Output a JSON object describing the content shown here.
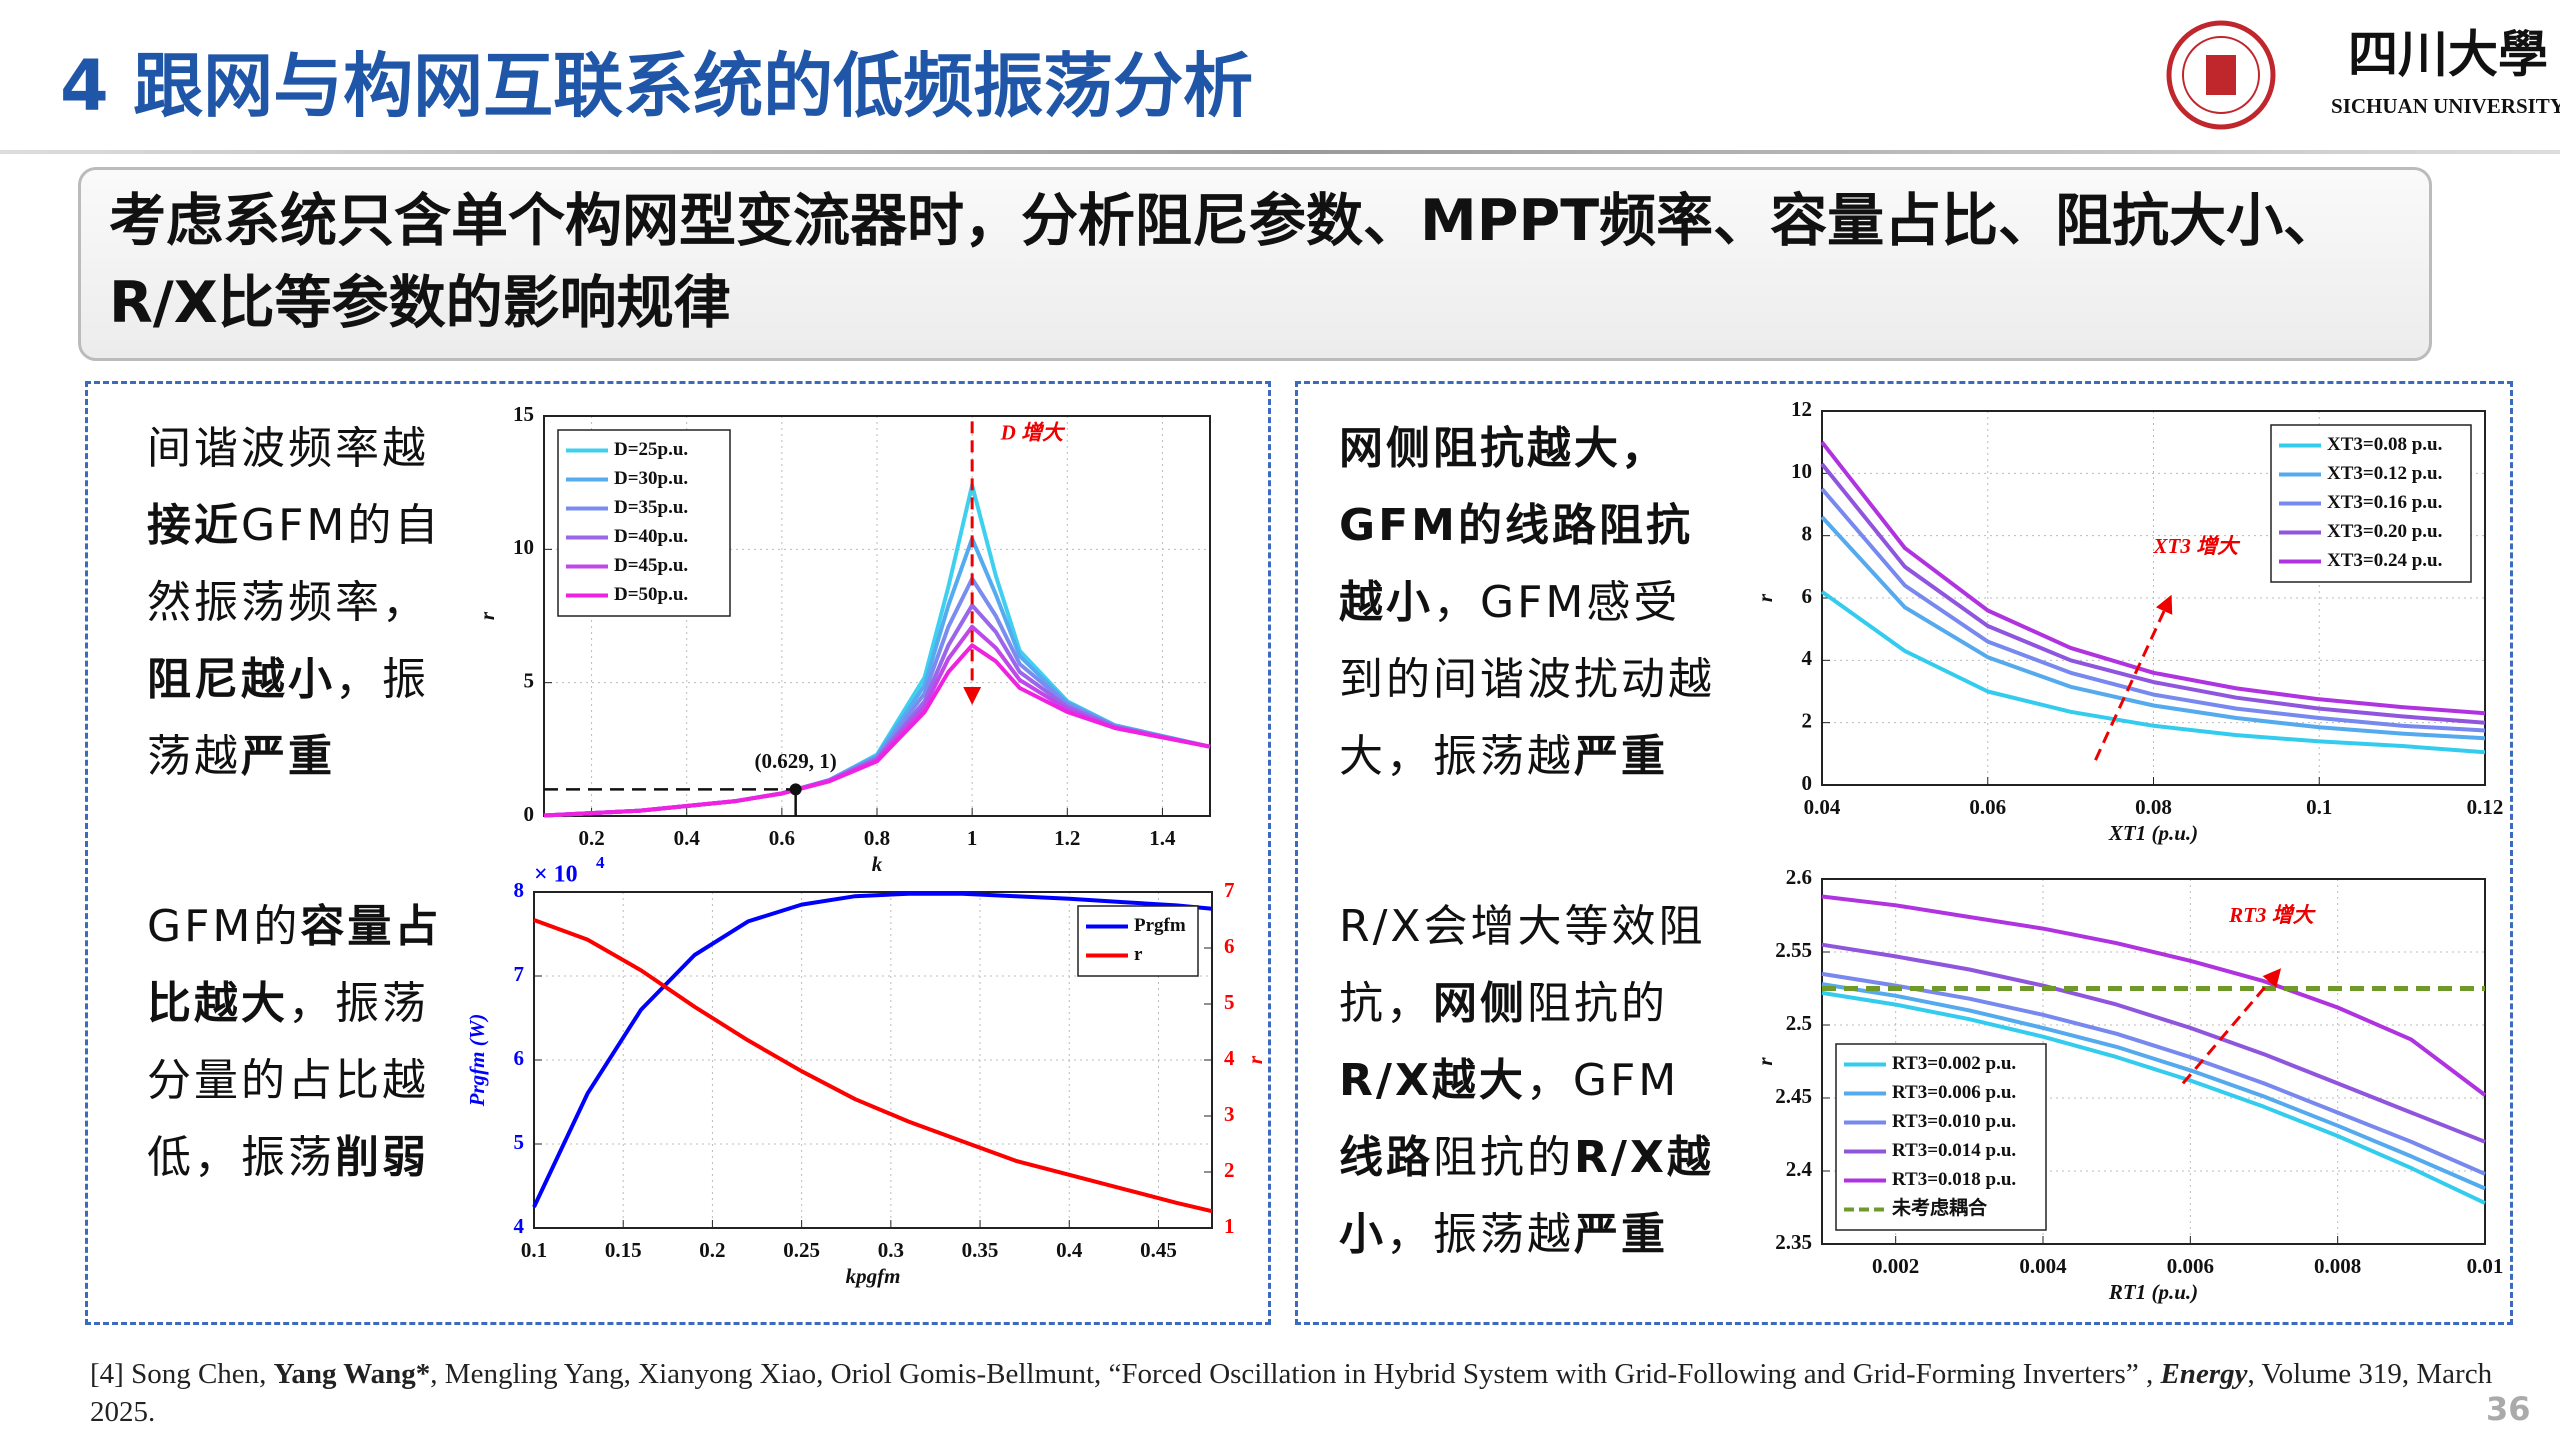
{
  "header": {
    "title": "4 跟网与构网互联系统的低频振荡分析",
    "logo_cn": "四川大學",
    "logo_en": "SICHUAN UNIVERSITY"
  },
  "banner": "考虑系统只含单个构网型变流器时，分析阻尼参数、MPPT频率、容量占比、阻抗大小、R/X比等参数的影响规律",
  "left_text": [
    {
      "lines": [
        [
          {
            "text": "间谐波频率越",
            "bold": false
          }
        ],
        [
          {
            "text": "接近",
            "bold": true
          },
          {
            "text": "GFM的自",
            "bold": false
          }
        ],
        [
          {
            "text": "然振荡频率，",
            "bold": false
          }
        ],
        [
          {
            "text": "阻尼越小",
            "bold": true
          },
          {
            "text": "，振",
            "bold": false
          }
        ],
        [
          {
            "text": "荡越",
            "bold": false
          },
          {
            "text": "严重",
            "bold": true
          }
        ]
      ]
    },
    {
      "lines": [
        [
          {
            "text": "GFM的",
            "bold": false
          },
          {
            "text": "容量占",
            "bold": true
          }
        ],
        [
          {
            "text": "比越大",
            "bold": true
          },
          {
            "text": "，振荡",
            "bold": false
          }
        ],
        [
          {
            "text": "分量的占比越",
            "bold": false
          }
        ],
        [
          {
            "text": "低，振荡",
            "bold": false
          },
          {
            "text": "削弱",
            "bold": true
          }
        ]
      ]
    }
  ],
  "right_text": [
    {
      "lines": [
        [
          {
            "text": "网侧阻抗越大，",
            "bold": true
          }
        ],
        [
          {
            "text": "GFM的线路阻抗",
            "bold": true
          }
        ],
        [
          {
            "text": "越小",
            "bold": true
          },
          {
            "text": "，GFM感受",
            "bold": false
          }
        ],
        [
          {
            "text": "到的间谐波扰动越",
            "bold": false
          }
        ],
        [
          {
            "text": "大，振荡越",
            "bold": false
          },
          {
            "text": "严重",
            "bold": true
          }
        ]
      ]
    },
    {
      "lines": [
        [
          {
            "text": "R/X会增大等效阻",
            "bold": false
          }
        ],
        [
          {
            "text": "抗，",
            "bold": false
          },
          {
            "text": "网侧",
            "bold": true
          },
          {
            "text": "阻抗的",
            "bold": false
          }
        ],
        [
          {
            "text": "R/X越大",
            "bold": true
          },
          {
            "text": "，GFM",
            "bold": false
          }
        ],
        [
          {
            "text": "线路",
            "bold": true
          },
          {
            "text": "阻抗的",
            "bold": false
          },
          {
            "text": "R/X越",
            "bold": true
          }
        ],
        [
          {
            "text": "小",
            "bold": true
          },
          {
            "text": "，振荡越",
            "bold": false
          },
          {
            "text": "严重",
            "bold": true
          }
        ]
      ]
    }
  ],
  "footnote": [
    {
      "text": "[4] Song Chen, ",
      "bold": false
    },
    {
      "text": "Yang Wang*",
      "bold": true
    },
    {
      "text": ", Mengling Yang, Xianyong Xiao, Oriol Gomis-Bellmunt, “Forced Oscillation in Hybrid System with Grid-Following and Grid-Forming Inverters” , ",
      "bold": false
    },
    {
      "text": "Energy",
      "bold": true,
      "italic": true
    },
    {
      "text": ", Volume 319, March 2025.",
      "bold": false
    }
  ],
  "page_number": "36",
  "chart_data": [
    {
      "type": "line",
      "xlabel": "k",
      "ylabel": "r",
      "xlim": [
        0.1,
        1.5
      ],
      "ylim": [
        0,
        15
      ],
      "xticks": [
        0.2,
        0.4,
        0.6,
        0.8,
        1,
        1.2,
        1.4
      ],
      "yticks": [
        0,
        5,
        10,
        15
      ],
      "grid": true,
      "legend": "upper left",
      "x": [
        0.1,
        0.3,
        0.5,
        0.6,
        0.7,
        0.8,
        0.9,
        0.95,
        1.0,
        1.05,
        1.1,
        1.2,
        1.3,
        1.5
      ],
      "series": [
        {
          "name": "D=25p.u.",
          "color": "#3fd0f0",
          "values": [
            0.02,
            0.2,
            0.55,
            0.85,
            1.35,
            2.3,
            5.2,
            8.6,
            12.4,
            9.0,
            6.2,
            4.3,
            3.4,
            2.6
          ]
        },
        {
          "name": "D=30p.u.",
          "color": "#55aaf0",
          "values": [
            0.02,
            0.2,
            0.55,
            0.85,
            1.35,
            2.25,
            4.9,
            7.9,
            10.4,
            8.3,
            6.0,
            4.25,
            3.4,
            2.6
          ]
        },
        {
          "name": "D=35p.u.",
          "color": "#7a8cf0",
          "values": [
            0.02,
            0.2,
            0.55,
            0.85,
            1.35,
            2.2,
            4.6,
            7.1,
            8.9,
            7.5,
            5.7,
            4.2,
            3.35,
            2.6
          ]
        },
        {
          "name": "D=40p.u.",
          "color": "#9a66ea",
          "values": [
            0.02,
            0.2,
            0.55,
            0.85,
            1.33,
            2.15,
            4.3,
            6.4,
            7.9,
            6.9,
            5.4,
            4.1,
            3.35,
            2.6
          ]
        },
        {
          "name": "D=45p.u.",
          "color": "#c048e8",
          "values": [
            0.02,
            0.2,
            0.55,
            0.85,
            1.32,
            2.1,
            4.1,
            5.9,
            7.1,
            6.3,
            5.1,
            4.0,
            3.3,
            2.6
          ]
        },
        {
          "name": "D=50p.u.",
          "color": "#ee22e0",
          "values": [
            0.02,
            0.2,
            0.55,
            0.84,
            1.3,
            2.05,
            3.9,
            5.4,
            6.4,
            5.8,
            4.8,
            3.9,
            3.3,
            2.6
          ]
        }
      ],
      "annotations": [
        "D 增大"
      ],
      "highlight": {
        "x": 0.629,
        "y": 1,
        "label": "(0.629, 1)"
      }
    },
    {
      "type": "line",
      "xlabel": "kpgfm",
      "ylabel": "Prgfm (W)",
      "y2label": "r",
      "ylabel_scale": "× 10",
      "ylabel_scale_exp": "4",
      "xlim": [
        0.1,
        0.48
      ],
      "ylim": [
        4,
        8
      ],
      "y2lim": [
        1,
        7
      ],
      "xticks": [
        0.1,
        0.15,
        0.2,
        0.25,
        0.3,
        0.35,
        0.4,
        0.45
      ],
      "yticks": [
        4,
        5,
        6,
        7,
        8
      ],
      "y2ticks": [
        1,
        2,
        3,
        4,
        5,
        6,
        7
      ],
      "grid": true,
      "legend": "upper right",
      "x": [
        0.1,
        0.13,
        0.16,
        0.19,
        0.22,
        0.25,
        0.28,
        0.31,
        0.34,
        0.37,
        0.4,
        0.43,
        0.46,
        0.48
      ],
      "series": [
        {
          "name": "Prgfm",
          "color": "#0000ff",
          "values": [
            4.25,
            5.6,
            6.6,
            7.25,
            7.65,
            7.85,
            7.95,
            7.98,
            7.98,
            7.95,
            7.92,
            7.88,
            7.84,
            7.8
          ]
        },
        {
          "name": "r",
          "color": "#ff0000",
          "axis": "y2",
          "values": [
            6.5,
            6.15,
            5.6,
            4.95,
            4.35,
            3.8,
            3.3,
            2.9,
            2.55,
            2.2,
            1.95,
            1.7,
            1.45,
            1.3
          ]
        }
      ]
    },
    {
      "type": "line",
      "xlabel": "XT1 (p.u.)",
      "ylabel": "r",
      "xlim": [
        0.04,
        0.12
      ],
      "ylim": [
        0,
        12
      ],
      "xticks": [
        0.04,
        0.06,
        0.08,
        0.1,
        0.12
      ],
      "yticks": [
        0,
        2,
        4,
        6,
        8,
        10,
        12
      ],
      "grid": true,
      "legend": "upper right",
      "x": [
        0.04,
        0.05,
        0.06,
        0.07,
        0.08,
        0.09,
        0.1,
        0.11,
        0.12
      ],
      "series": [
        {
          "name": "XT3=0.08 p.u.",
          "color": "#33ccee",
          "values": [
            6.2,
            4.3,
            3.0,
            2.35,
            1.9,
            1.6,
            1.4,
            1.25,
            1.05
          ]
        },
        {
          "name": "XT3=0.12 p.u.",
          "color": "#55aaee",
          "values": [
            8.6,
            5.7,
            4.1,
            3.15,
            2.55,
            2.15,
            1.85,
            1.65,
            1.5
          ]
        },
        {
          "name": "XT3=0.16 p.u.",
          "color": "#7788ee",
          "values": [
            9.5,
            6.4,
            4.6,
            3.6,
            2.9,
            2.45,
            2.15,
            1.9,
            1.75
          ]
        },
        {
          "name": "XT3=0.20 p.u.",
          "color": "#9055dd",
          "values": [
            10.3,
            7.0,
            5.1,
            4.0,
            3.3,
            2.8,
            2.45,
            2.2,
            2.0
          ]
        },
        {
          "name": "XT3=0.24 p.u.",
          "color": "#b033e0",
          "values": [
            11,
            7.6,
            5.6,
            4.4,
            3.6,
            3.1,
            2.75,
            2.5,
            2.3
          ]
        }
      ],
      "annotations": [
        "XT3 增大"
      ]
    },
    {
      "type": "line",
      "xlabel": "RT1 (p.u.)",
      "ylabel": "r",
      "xlim": [
        0.001,
        0.01
      ],
      "ylim": [
        2.35,
        2.6
      ],
      "xticks": [
        0.002,
        0.004,
        0.006,
        0.008,
        0.01
      ],
      "yticks": [
        2.35,
        2.4,
        2.45,
        2.5,
        2.55,
        2.6
      ],
      "grid": true,
      "legend": "lower left",
      "x": [
        0.001,
        0.002,
        0.003,
        0.004,
        0.005,
        0.006,
        0.007,
        0.008,
        0.009,
        0.01
      ],
      "series": [
        {
          "name": "RT3=0.002 p.u.",
          "color": "#33ccee",
          "values": [
            2.522,
            2.514,
            2.504,
            2.492,
            2.478,
            2.462,
            2.444,
            2.424,
            2.402,
            2.378
          ]
        },
        {
          "name": "RT3=0.006 p.u.",
          "color": "#55aaee",
          "values": [
            2.528,
            2.52,
            2.51,
            2.498,
            2.485,
            2.469,
            2.451,
            2.431,
            2.41,
            2.388
          ]
        },
        {
          "name": "RT3=0.010 p.u.",
          "color": "#7788ee",
          "values": [
            2.535,
            2.527,
            2.518,
            2.507,
            2.494,
            2.478,
            2.46,
            2.44,
            2.42,
            2.398
          ]
        },
        {
          "name": "RT3=0.014 p.u.",
          "color": "#9055dd",
          "values": [
            2.555,
            2.547,
            2.538,
            2.527,
            2.514,
            2.498,
            2.48,
            2.46,
            2.44,
            2.42
          ]
        },
        {
          "name": "RT3=0.018 p.u.",
          "color": "#b033e0",
          "values": [
            2.588,
            2.582,
            2.574,
            2.566,
            2.556,
            2.544,
            2.53,
            2.512,
            2.49,
            2.452
          ]
        },
        {
          "name": "未考虑耦合",
          "color": "#6f9a2a",
          "dash": true,
          "values": [
            2.525,
            2.525,
            2.525,
            2.525,
            2.525,
            2.525,
            2.525,
            2.525,
            2.525,
            2.525
          ]
        }
      ],
      "annotations": [
        "RT3 增大"
      ]
    }
  ]
}
